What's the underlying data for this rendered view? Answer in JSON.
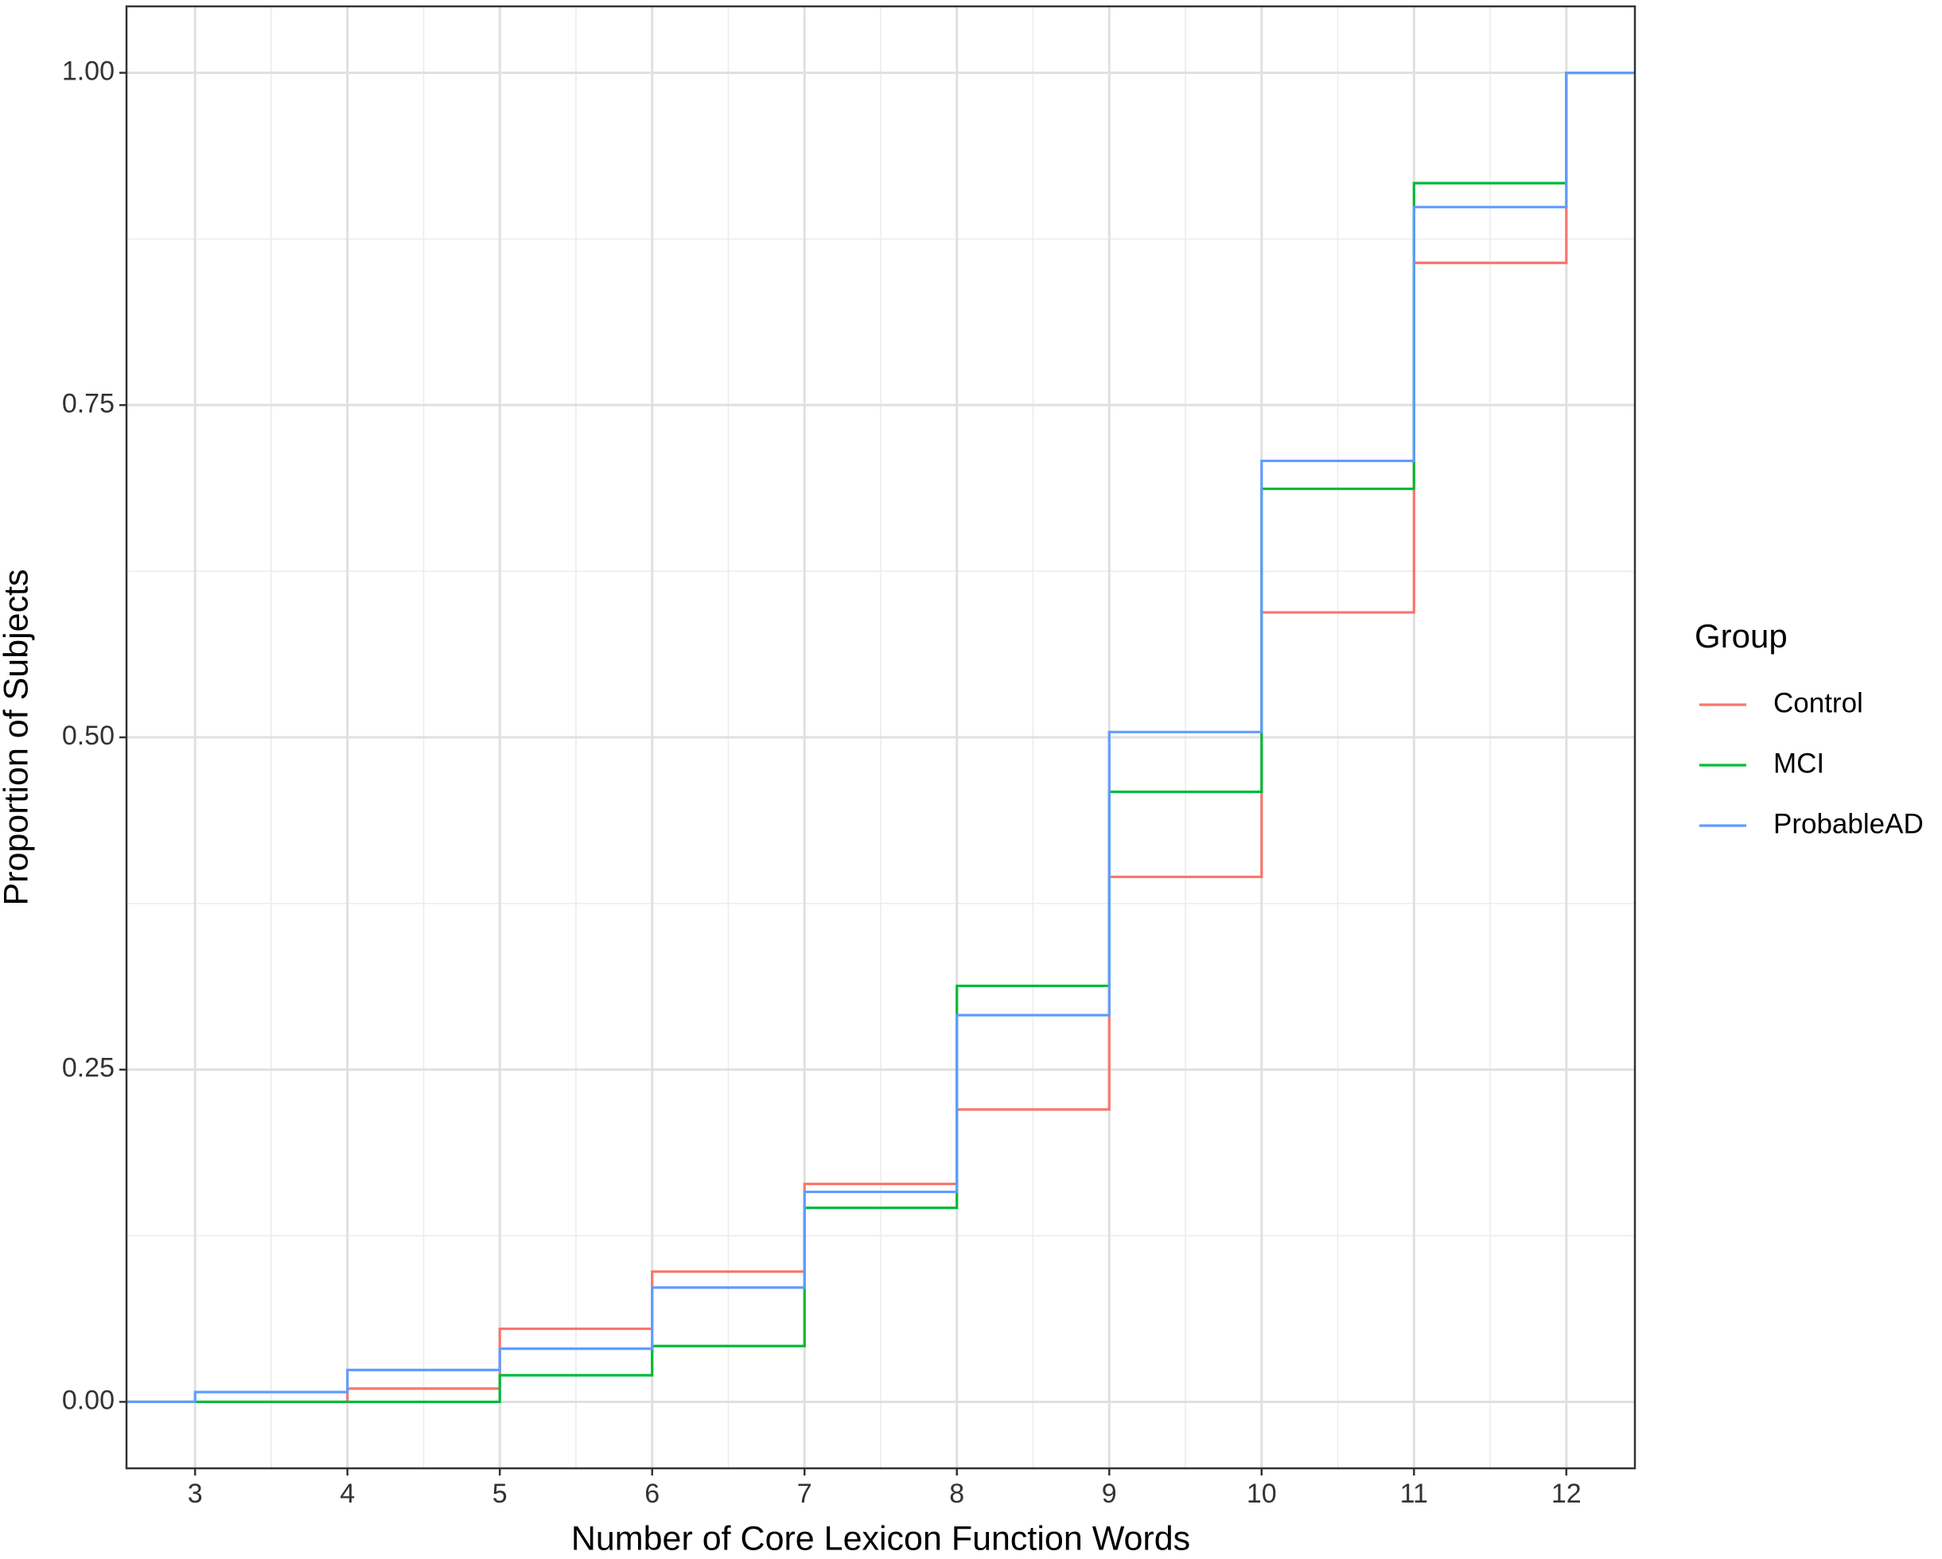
{
  "chart_data": {
    "type": "step",
    "x_label": "Number of Core Lexicon Function Words",
    "y_label": "Proportion of Subjects",
    "x": [
      3,
      4,
      5,
      6,
      7,
      8,
      9,
      10,
      11,
      12
    ],
    "series": [
      {
        "name": "Control",
        "color": "#F8766D",
        "values": [
          0,
          0.01,
          0.055,
          0.098,
          0.164,
          0.22,
          0.395,
          0.594,
          0.857,
          1.0
        ]
      },
      {
        "name": "MCI",
        "color": "#00BA38",
        "values": [
          0,
          0,
          0.02,
          0.042,
          0.146,
          0.313,
          0.459,
          0.687,
          0.917,
          1.0
        ]
      },
      {
        "name": "ProbableAD",
        "color": "#619CFF",
        "values": [
          0.0074,
          0.024,
          0.04,
          0.086,
          0.158,
          0.291,
          0.504,
          0.708,
          0.899,
          1.0
        ]
      }
    ],
    "xlim": [
      2.55,
      12.45
    ],
    "ylim": [
      -0.05,
      1.05
    ],
    "xticks": [
      3,
      4,
      5,
      6,
      7,
      8,
      9,
      10,
      11,
      12
    ],
    "yticks": [
      {
        "value": 0,
        "label": "0.00"
      },
      {
        "value": 0.25,
        "label": "0.25"
      },
      {
        "value": 0.5,
        "label": "0.50"
      },
      {
        "value": 0.75,
        "label": "0.75"
      },
      {
        "value": 1,
        "label": "1.00"
      }
    ],
    "legend_title": "Group",
    "grid": true
  }
}
